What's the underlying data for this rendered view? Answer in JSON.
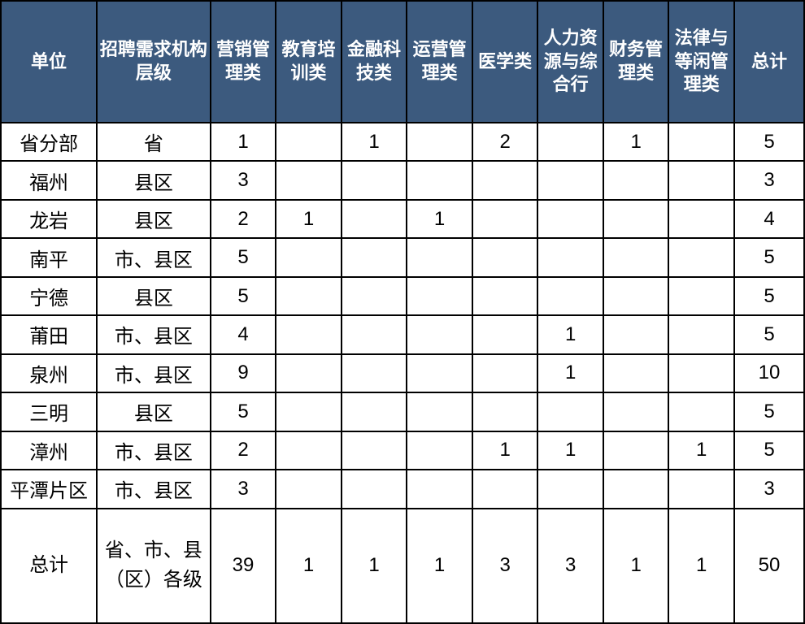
{
  "table": {
    "type": "table",
    "header_bg_color": "#3c5a7e",
    "header_text_color": "#ffffff",
    "cell_bg_color": "#ffffff",
    "cell_text_color": "#000000",
    "border_color": "#000000",
    "border_width": 2,
    "header_fontsize": 22,
    "cell_fontsize": 24,
    "columns": [
      "单位",
      "招聘需求机构层级",
      "营销管理类",
      "教育培训类",
      "金融科技类",
      "运营管理类",
      "医学类",
      "人力资源与综合行",
      "财务管理类",
      "法律与等闲管理类",
      "总计"
    ],
    "rows": [
      {
        "unit": "省分部",
        "level": "省",
        "c0": "1",
        "c1": "",
        "c2": "1",
        "c3": "",
        "c4": "2",
        "c5": "",
        "c6": "1",
        "c7": "",
        "total": "5"
      },
      {
        "unit": "福州",
        "level": "县区",
        "c0": "3",
        "c1": "",
        "c2": "",
        "c3": "",
        "c4": "",
        "c5": "",
        "c6": "",
        "c7": "",
        "total": "3"
      },
      {
        "unit": "龙岩",
        "level": "县区",
        "c0": "2",
        "c1": "1",
        "c2": "",
        "c3": "1",
        "c4": "",
        "c5": "",
        "c6": "",
        "c7": "",
        "total": "4"
      },
      {
        "unit": "南平",
        "level": "市、县区",
        "c0": "5",
        "c1": "",
        "c2": "",
        "c3": "",
        "c4": "",
        "c5": "",
        "c6": "",
        "c7": "",
        "total": "5"
      },
      {
        "unit": "宁德",
        "level": "县区",
        "c0": "5",
        "c1": "",
        "c2": "",
        "c3": "",
        "c4": "",
        "c5": "",
        "c6": "",
        "c7": "",
        "total": "5"
      },
      {
        "unit": "莆田",
        "level": "市、县区",
        "c0": "4",
        "c1": "",
        "c2": "",
        "c3": "",
        "c4": "",
        "c5": "1",
        "c6": "",
        "c7": "",
        "total": "5"
      },
      {
        "unit": "泉州",
        "level": "市、县区",
        "c0": "9",
        "c1": "",
        "c2": "",
        "c3": "",
        "c4": "",
        "c5": "1",
        "c6": "",
        "c7": "",
        "total": "10"
      },
      {
        "unit": "三明",
        "level": "县区",
        "c0": "5",
        "c1": "",
        "c2": "",
        "c3": "",
        "c4": "",
        "c5": "",
        "c6": "",
        "c7": "",
        "total": "5"
      },
      {
        "unit": "漳州",
        "level": "市、县区",
        "c0": "2",
        "c1": "",
        "c2": "",
        "c3": "",
        "c4": "1",
        "c5": "1",
        "c6": "",
        "c7": "1",
        "total": "5"
      },
      {
        "unit": "平潭片区",
        "level": "市、县区",
        "c0": "3",
        "c1": "",
        "c2": "",
        "c3": "",
        "c4": "",
        "c5": "",
        "c6": "",
        "c7": "",
        "total": "3"
      },
      {
        "unit": "总计",
        "level": "省、市、县（区）各级",
        "c0": "39",
        "c1": "1",
        "c2": "1",
        "c3": "1",
        "c4": "3",
        "c5": "3",
        "c6": "1",
        "c7": "1",
        "total": "50"
      }
    ]
  }
}
